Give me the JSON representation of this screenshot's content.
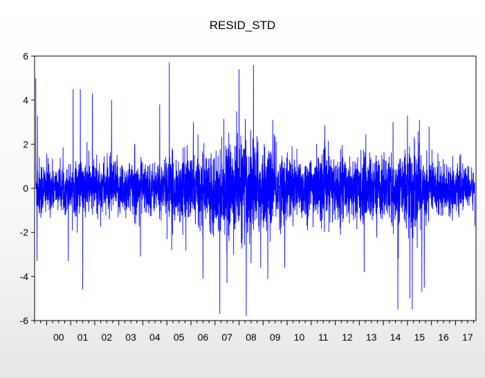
{
  "chart_data": {
    "type": "line",
    "title": "RESID_STD",
    "xlabel": "",
    "ylabel": "",
    "x_range": [
      1999.5,
      2017.85
    ],
    "ylim": [
      -6,
      6
    ],
    "y_ticks": [
      6,
      4,
      2,
      0,
      -2,
      -4,
      -6
    ],
    "x_ticks": [
      {
        "label": "00",
        "year": 2000
      },
      {
        "label": "01",
        "year": 2001
      },
      {
        "label": "02",
        "year": 2002
      },
      {
        "label": "03",
        "year": 2003
      },
      {
        "label": "04",
        "year": 2004
      },
      {
        "label": "05",
        "year": 2005
      },
      {
        "label": "06",
        "year": 2006
      },
      {
        "label": "07",
        "year": 2007
      },
      {
        "label": "08",
        "year": 2008
      },
      {
        "label": "09",
        "year": 2009
      },
      {
        "label": "10",
        "year": 2010
      },
      {
        "label": "11",
        "year": 2011
      },
      {
        "label": "12",
        "year": 2012
      },
      {
        "label": "13",
        "year": 2013
      },
      {
        "label": "14",
        "year": 2014
      },
      {
        "label": "15",
        "year": 2015
      },
      {
        "label": "16",
        "year": 2016
      },
      {
        "label": "17",
        "year": 2017
      }
    ],
    "series": [
      {
        "color": "#0000ff",
        "description_points": [
          {
            "x": 1999.55,
            "y": 5.0
          },
          {
            "x": 1999.6,
            "y": -3.3
          },
          {
            "x": 1999.62,
            "y": 3.3
          },
          {
            "x": 2000.9,
            "y": -3.3
          },
          {
            "x": 2001.1,
            "y": 4.5
          },
          {
            "x": 2001.4,
            "y": 4.5
          },
          {
            "x": 2001.5,
            "y": 5.0
          },
          {
            "x": 2001.5,
            "y": -4.6
          },
          {
            "x": 2001.9,
            "y": 4.3
          },
          {
            "x": 2002.7,
            "y": 4.0
          },
          {
            "x": 2003.9,
            "y": -3.1
          },
          {
            "x": 2004.7,
            "y": 3.8
          },
          {
            "x": 2005.1,
            "y": 5.7
          },
          {
            "x": 2005.2,
            "y": -2.8
          },
          {
            "x": 2006.1,
            "y": 3.0
          },
          {
            "x": 2006.5,
            "y": -4.1
          },
          {
            "x": 2007.2,
            "y": -5.7
          },
          {
            "x": 2007.5,
            "y": -4.3
          },
          {
            "x": 2007.9,
            "y": 3.5
          },
          {
            "x": 2008.0,
            "y": 5.4
          },
          {
            "x": 2008.3,
            "y": -5.8
          },
          {
            "x": 2008.5,
            "y": -3.4
          },
          {
            "x": 2008.6,
            "y": 5.6
          },
          {
            "x": 2008.9,
            "y": -3.6
          },
          {
            "x": 2009.4,
            "y": 3.1
          },
          {
            "x": 2009.9,
            "y": -3.6
          },
          {
            "x": 2013.2,
            "y": -3.8
          },
          {
            "x": 2014.4,
            "y": 3.0
          },
          {
            "x": 2014.6,
            "y": -5.5
          },
          {
            "x": 2015.0,
            "y": 3.3
          },
          {
            "x": 2015.1,
            "y": -5.0
          },
          {
            "x": 2015.2,
            "y": -5.5
          },
          {
            "x": 2015.5,
            "y": 3.1
          },
          {
            "x": 2015.6,
            "y": -4.7
          },
          {
            "x": 2015.7,
            "y": -4.5
          },
          {
            "x": 2015.9,
            "y": 2.8
          },
          {
            "x": 2017.8,
            "y": -1.7
          }
        ],
        "volatility_profile": [
          {
            "x": 1999.5,
            "sd": 0.75
          },
          {
            "x": 2000.5,
            "sd": 0.45
          },
          {
            "x": 2001.5,
            "sd": 0.65
          },
          {
            "x": 2002.5,
            "sd": 0.6
          },
          {
            "x": 2003.5,
            "sd": 0.65
          },
          {
            "x": 2004.5,
            "sd": 0.55
          },
          {
            "x": 2005.5,
            "sd": 0.75
          },
          {
            "x": 2006.5,
            "sd": 0.75
          },
          {
            "x": 2007.5,
            "sd": 0.95
          },
          {
            "x": 2008.5,
            "sd": 1.15
          },
          {
            "x": 2009.5,
            "sd": 0.85
          },
          {
            "x": 2010.5,
            "sd": 0.7
          },
          {
            "x": 2011.5,
            "sd": 0.75
          },
          {
            "x": 2012.5,
            "sd": 0.7
          },
          {
            "x": 2013.5,
            "sd": 0.75
          },
          {
            "x": 2014.5,
            "sd": 0.65
          },
          {
            "x": 2015.2,
            "sd": 1.05
          },
          {
            "x": 2016.0,
            "sd": 0.65
          },
          {
            "x": 2017.5,
            "sd": 0.45
          },
          {
            "x": 2017.85,
            "sd": 0.4
          }
        ]
      }
    ],
    "grid": false,
    "legend": "none"
  }
}
